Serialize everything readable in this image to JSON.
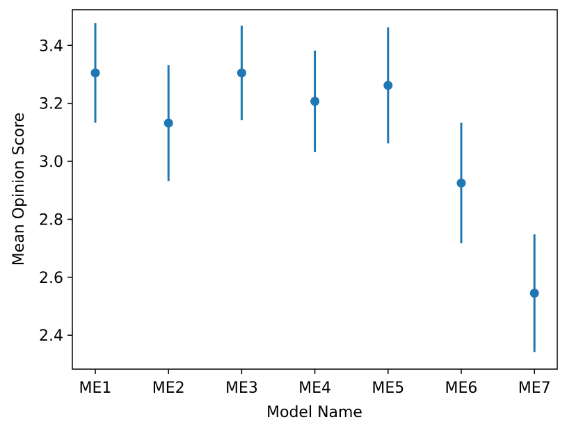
{
  "chart_data": {
    "type": "scatter",
    "xlabel": "Model Name",
    "ylabel": "Mean Opinion Score",
    "categories": [
      "ME1",
      "ME2",
      "ME3",
      "ME4",
      "ME5",
      "ME6",
      "ME7"
    ],
    "series": [
      {
        "values": [
          3.305,
          3.132,
          3.305,
          3.207,
          3.262,
          2.925,
          2.545
        ],
        "err_low": [
          3.133,
          2.932,
          3.142,
          3.032,
          3.062,
          2.717,
          2.342
        ],
        "err_high": [
          3.477,
          3.332,
          3.468,
          3.382,
          3.462,
          3.133,
          2.748
        ]
      }
    ],
    "ylim": [
      2.283,
      3.523
    ],
    "yticks": [
      2.4,
      2.6,
      2.8,
      3.0,
      3.2,
      3.4
    ],
    "ytick_labels": [
      "2.4",
      "2.6",
      "2.8",
      "3.0",
      "3.2",
      "3.4"
    ],
    "grid": false,
    "colors": {
      "series": "#1f77b4"
    }
  }
}
